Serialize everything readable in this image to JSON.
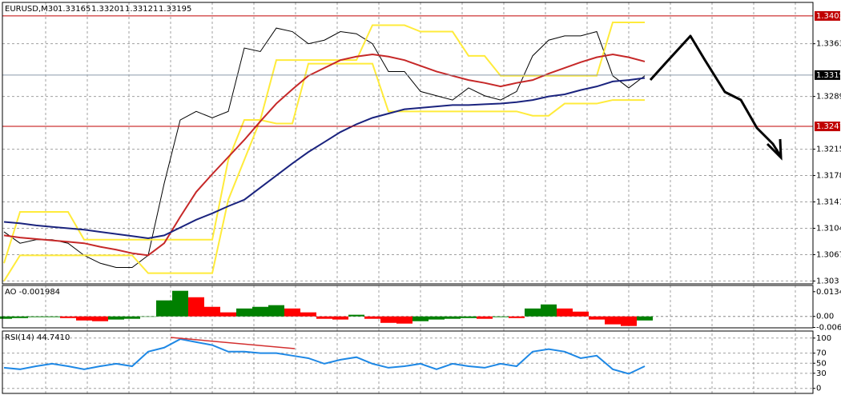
{
  "chart_data": [
    {
      "type": "line",
      "title": "EURUSD,M30",
      "quote": [
        1.33165,
        1.33201,
        1.33121,
        1.33195
      ],
      "ylim": [
        1.3026,
        1.3421
      ],
      "yticks": [
        1.303,
        1.3067,
        1.3104,
        1.3141,
        1.3178,
        1.3215,
        1.3289,
        1.3363
      ],
      "levels": [
        {
          "value": 1.3402,
          "color": "#c00000"
        },
        {
          "value": 1.3319,
          "color": "#000000"
        },
        {
          "value": 1.3247,
          "color": "#c00000"
        }
      ],
      "grid": true,
      "series": [
        {
          "color": "#000000",
          "values": [
            1.3099,
            1.3083,
            1.3088,
            1.3088,
            1.3083,
            1.3066,
            1.3055,
            1.3049,
            1.3049,
            1.3066,
            1.3167,
            1.3256,
            1.3268,
            1.3259,
            1.3268,
            1.3357,
            1.3352,
            1.3385,
            1.338,
            1.3363,
            1.3368,
            1.338,
            1.3377,
            1.3363,
            1.3324,
            1.3324,
            1.3296,
            1.329,
            1.3284,
            1.3301,
            1.329,
            1.3284,
            1.3296,
            1.3346,
            1.3368,
            1.3374,
            1.3374,
            1.338,
            1.3318,
            1.3301,
            1.3318
          ]
        },
        {
          "color": "#ffeb3b",
          "values": [
            1.3055,
            1.3127,
            1.3127,
            1.3127,
            1.3127,
            1.3088,
            1.3088,
            1.3088,
            1.3088,
            1.3088,
            1.3088,
            1.3088,
            1.3088,
            1.3088,
            1.32,
            1.3256,
            1.3256,
            1.334,
            1.334,
            1.334,
            1.334,
            1.334,
            1.334,
            1.3389,
            1.3389,
            1.3389,
            1.338,
            1.338,
            1.338,
            1.3346,
            1.3346,
            1.3318,
            1.3318,
            1.3318,
            1.3318,
            1.3318,
            1.3318,
            1.3318,
            1.3393,
            1.3393,
            1.3393
          ]
        },
        {
          "color": "#ffeb3b",
          "values": [
            1.303,
            1.3066,
            1.3066,
            1.3066,
            1.3066,
            1.3066,
            1.3066,
            1.3066,
            1.3066,
            1.3041,
            1.3041,
            1.3041,
            1.3041,
            1.3041,
            1.3144,
            1.32,
            1.3256,
            1.3251,
            1.3251,
            1.3335,
            1.3335,
            1.3335,
            1.3335,
            1.3335,
            1.3268,
            1.3268,
            1.3268,
            1.3268,
            1.3268,
            1.3268,
            1.3268,
            1.3268,
            1.3268,
            1.3262,
            1.3262,
            1.3279,
            1.3279,
            1.3279,
            1.3284,
            1.3284,
            1.3284
          ]
        },
        {
          "color": "#c62828",
          "values": [
            1.3094,
            1.3091,
            1.3089,
            1.3087,
            1.3085,
            1.3083,
            1.3078,
            1.3074,
            1.3069,
            1.3066,
            1.3083,
            1.312,
            1.3155,
            1.318,
            1.3204,
            1.3228,
            1.3254,
            1.3279,
            1.3299,
            1.3318,
            1.3329,
            1.334,
            1.3345,
            1.3348,
            1.3345,
            1.334,
            1.3332,
            1.3324,
            1.3318,
            1.3312,
            1.3308,
            1.3303,
            1.3308,
            1.3312,
            1.3321,
            1.3329,
            1.3337,
            1.3344,
            1.3348,
            1.3344,
            1.3338
          ]
        },
        {
          "color": "#1a237e",
          "values": [
            1.3113,
            1.3111,
            1.3108,
            1.3106,
            1.3104,
            1.3102,
            1.3099,
            1.3096,
            1.3093,
            1.309,
            1.3094,
            1.3105,
            1.3116,
            1.3125,
            1.3135,
            1.3144,
            1.3161,
            1.3178,
            1.3195,
            1.3211,
            1.3225,
            1.3239,
            1.325,
            1.3259,
            1.3265,
            1.3271,
            1.3273,
            1.3275,
            1.3277,
            1.3277,
            1.3278,
            1.3279,
            1.3281,
            1.3284,
            1.3289,
            1.3292,
            1.3298,
            1.3303,
            1.331,
            1.3312,
            1.3315
          ]
        }
      ]
    },
    {
      "type": "histogram-osc",
      "title": "AO -0.001984",
      "up_color": "#008000",
      "down_color": "#ff0000",
      "ylim": [
        -0.0062,
        0.0168
      ],
      "yticks": [
        0.01342,
        {
          "value": 0,
          "label": "0.00"
        },
        {
          "value": -0.006,
          "label": "-0.0060"
        }
      ],
      "values": [
        -0.0013,
        -0.0009,
        -0.0004,
        -0.0004,
        -0.0009,
        -0.0022,
        -0.0026,
        -0.0017,
        -0.0013,
        0,
        0.0087,
        0.0139,
        0.0104,
        0.0052,
        0.0022,
        0.0043,
        0.0052,
        0.0061,
        0.0043,
        0.0022,
        -0.0013,
        -0.0017,
        0.0009,
        -0.0013,
        -0.0035,
        -0.0039,
        -0.0026,
        -0.0017,
        -0.0013,
        -0.0009,
        -0.0013,
        -0.0004,
        -0.0009,
        0.0043,
        0.0065,
        0.0043,
        0.0026,
        -0.0017,
        -0.0043,
        -0.0052,
        -0.0022
      ]
    },
    {
      "type": "line",
      "title": "RSI(14) 44.7410",
      "ylim": [
        -10,
        114
      ],
      "yticks": [
        100,
        70,
        50,
        30,
        0
      ],
      "grid": true,
      "series": [
        {
          "color": "#1e88e5",
          "values": [
            41,
            38,
            44,
            49,
            44,
            38,
            44,
            49,
            44,
            73,
            81,
            98,
            92,
            86,
            73,
            73,
            70,
            70,
            65,
            60,
            49,
            57,
            62,
            49,
            41,
            44,
            49,
            38,
            49,
            44,
            41,
            49,
            44,
            73,
            78,
            73,
            60,
            65,
            38,
            29,
            44
          ]
        }
      ]
    }
  ]
}
